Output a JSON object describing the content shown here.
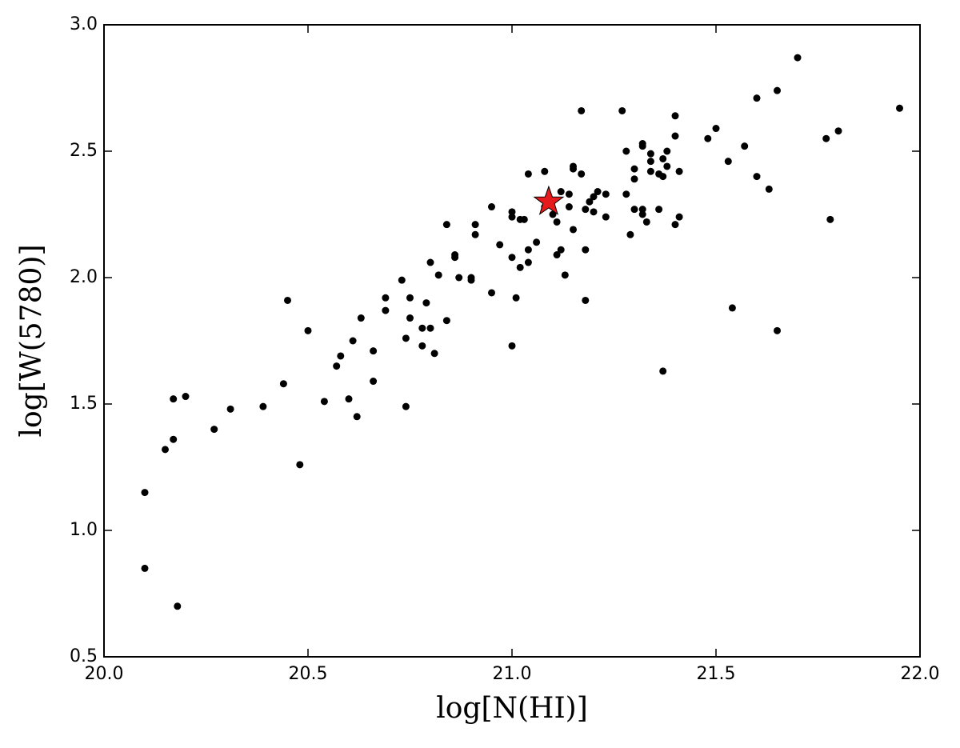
{
  "chart_data": {
    "type": "scatter",
    "xlabel": "log[N(HI)]",
    "ylabel": "log[W(5780)]",
    "xlim": [
      20.0,
      22.0
    ],
    "ylim": [
      0.5,
      3.0
    ],
    "xticks": [
      {
        "value": 20,
        "label": "20.0"
      },
      20.5,
      {
        "value": 21,
        "label": "21.0"
      },
      21.5,
      {
        "value": 22,
        "label": "22.0"
      }
    ],
    "yticks": [
      0.5,
      {
        "value": 1,
        "label": "1.0"
      },
      1.5,
      {
        "value": 2,
        "label": "2.0"
      },
      2.5,
      {
        "value": 3,
        "label": "3.0"
      }
    ],
    "series": [
      {
        "color": "#000000",
        "marker": "circle",
        "x": [
          20.1,
          20.1,
          20.18,
          20.15,
          20.17,
          20.17,
          20.2,
          20.27,
          20.31,
          20.39,
          20.44,
          20.45,
          20.48,
          20.5,
          20.54,
          20.57,
          20.58,
          20.6,
          20.61,
          20.62,
          20.63,
          20.66,
          20.66,
          20.69,
          20.69,
          20.73,
          20.74,
          20.74,
          20.75,
          20.75,
          20.78,
          20.78,
          20.79,
          20.8,
          20.8,
          20.81,
          20.82,
          20.84,
          20.84,
          20.86,
          20.86,
          20.87,
          20.9,
          20.9,
          20.91,
          20.91,
          20.95,
          20.95,
          20.97,
          21.0,
          21.0,
          21.0,
          21.0,
          21.01,
          21.02,
          21.02,
          21.03,
          21.04,
          21.04,
          21.04,
          21.06,
          21.08,
          21.08,
          21.1,
          21.11,
          21.11,
          21.12,
          21.12,
          21.13,
          21.14,
          21.14,
          21.15,
          21.15,
          21.15,
          21.17,
          21.17,
          21.18,
          21.18,
          21.18,
          21.19,
          21.2,
          21.2,
          21.21,
          21.23,
          21.23,
          21.27,
          21.28,
          21.28,
          21.29,
          21.3,
          21.3,
          21.3,
          21.32,
          21.32,
          21.32,
          21.32,
          21.33,
          21.34,
          21.34,
          21.34,
          21.36,
          21.36,
          21.37,
          21.37,
          21.37,
          21.38,
          21.38,
          21.4,
          21.4,
          21.4,
          21.41,
          21.41,
          21.48,
          21.5,
          21.53,
          21.54,
          21.57,
          21.6,
          21.6,
          21.63,
          21.65,
          21.65,
          21.7,
          21.77,
          21.78,
          21.8,
          21.95
        ],
        "y": [
          1.15,
          0.85,
          0.7,
          1.32,
          1.36,
          1.52,
          1.53,
          1.4,
          1.48,
          1.49,
          1.58,
          1.91,
          1.26,
          1.79,
          1.51,
          1.65,
          1.69,
          1.52,
          1.75,
          1.45,
          1.84,
          1.71,
          1.59,
          1.92,
          1.87,
          1.99,
          1.49,
          1.76,
          1.92,
          1.84,
          1.8,
          1.73,
          1.9,
          1.8,
          2.06,
          1.7,
          2.01,
          2.21,
          1.83,
          2.09,
          2.08,
          2.0,
          2.0,
          1.99,
          2.21,
          2.17,
          2.28,
          1.94,
          2.13,
          2.26,
          2.24,
          2.08,
          1.73,
          1.92,
          2.04,
          2.23,
          2.23,
          2.41,
          2.11,
          2.06,
          2.14,
          2.42,
          2.28,
          2.25,
          2.22,
          2.09,
          2.11,
          2.34,
          2.01,
          2.33,
          2.28,
          2.44,
          2.43,
          2.19,
          2.41,
          2.66,
          2.27,
          2.11,
          1.91,
          2.3,
          2.32,
          2.26,
          2.34,
          2.33,
          2.24,
          2.66,
          2.5,
          2.33,
          2.17,
          2.39,
          2.43,
          2.27,
          2.53,
          2.52,
          2.27,
          2.25,
          2.22,
          2.49,
          2.46,
          2.42,
          2.41,
          2.27,
          2.47,
          2.4,
          1.63,
          2.5,
          2.44,
          2.64,
          2.56,
          2.21,
          2.42,
          2.24,
          2.55,
          2.59,
          2.46,
          1.88,
          2.52,
          2.71,
          2.4,
          2.35,
          2.74,
          1.79,
          2.87,
          2.55,
          2.23,
          2.58,
          2.67
        ]
      },
      {
        "color": "#e41a1c",
        "marker": "star",
        "x": [
          21.09
        ],
        "y": [
          2.3
        ]
      }
    ]
  }
}
